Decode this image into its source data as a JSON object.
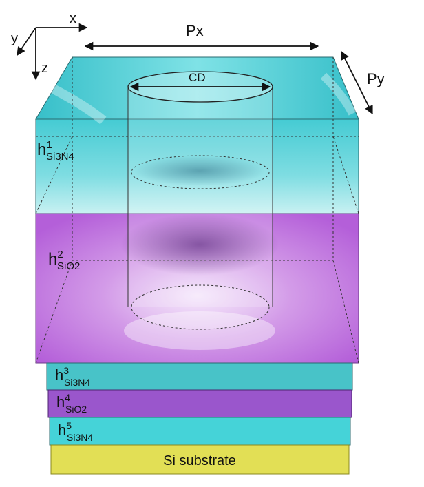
{
  "axes": {
    "x": "x",
    "y": "y",
    "z": "z"
  },
  "dimensions": {
    "px": "Px",
    "py": "Py",
    "cd": "CD"
  },
  "layers": [
    {
      "base": "h",
      "sup": "1",
      "sub": "Si3N4",
      "material": "Si3N4"
    },
    {
      "base": "h",
      "sup": "2",
      "sub": "SiO2",
      "material": "SiO2"
    },
    {
      "base": "h",
      "sup": "3",
      "sub": "Si3N4",
      "material": "Si3N4"
    },
    {
      "base": "h",
      "sup": "4",
      "sub": "SiO2",
      "material": "SiO2"
    },
    {
      "base": "h",
      "sup": "5",
      "sub": "Si3N4",
      "material": "Si3N4"
    }
  ],
  "substrate": {
    "label": "Si substrate"
  },
  "colors": {
    "si3n4": "#3ec9d1",
    "sio2": "#b36ad6",
    "sio2_dark": "#8a44b8",
    "substrate": "#e6e35a"
  }
}
